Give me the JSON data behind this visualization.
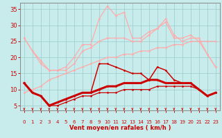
{
  "x": [
    0,
    1,
    2,
    3,
    4,
    5,
    6,
    7,
    8,
    9,
    10,
    11,
    12,
    13,
    14,
    15,
    16,
    17,
    18,
    19,
    20,
    21,
    22,
    23
  ],
  "light_pink1": [
    26,
    22,
    19,
    16,
    16,
    17,
    20,
    24,
    24,
    32,
    36,
    33,
    34,
    26,
    26,
    28,
    29,
    32,
    27,
    25,
    26,
    26,
    21,
    17
  ],
  "light_pink2": [
    26,
    22,
    18,
    16,
    16,
    16,
    18,
    22,
    23,
    25,
    26,
    26,
    26,
    25,
    25,
    27,
    29,
    31,
    26,
    26,
    27,
    25,
    21,
    17
  ],
  "light_pink3": [
    9,
    10,
    11,
    13,
    14,
    15,
    16,
    17,
    18,
    19,
    20,
    20,
    21,
    21,
    22,
    22,
    23,
    23,
    24,
    24,
    25,
    25,
    25,
    25
  ],
  "red_zigzag": [
    12,
    9,
    8,
    5,
    6,
    7,
    8,
    9,
    9,
    18,
    18,
    17,
    16,
    15,
    15,
    13,
    17,
    16,
    13,
    12,
    12,
    10,
    8,
    9
  ],
  "red_thick": [
    12,
    9,
    8,
    5,
    6,
    7,
    8,
    9,
    9,
    10,
    11,
    11,
    12,
    12,
    12,
    13,
    13,
    12,
    12,
    12,
    12,
    10,
    8,
    9
  ],
  "red_low": [
    12,
    9,
    8,
    5,
    5,
    6,
    7,
    8,
    8,
    9,
    9,
    9,
    10,
    10,
    10,
    10,
    11,
    11,
    11,
    11,
    11,
    10,
    8,
    9
  ],
  "xlabel": "Vent moyen/en rafales ( km/h )",
  "yticks": [
    5,
    10,
    15,
    20,
    25,
    30,
    35
  ],
  "xlim": [
    -0.5,
    23.5
  ],
  "ylim": [
    3.5,
    37
  ],
  "bg_color": "#c8ecec",
  "grid_color": "#99cccc",
  "text_color": "#cc0000",
  "light_color": "#ffaaaa",
  "red_color": "#cc0000",
  "figsize": [
    3.2,
    2.0
  ],
  "dpi": 100
}
